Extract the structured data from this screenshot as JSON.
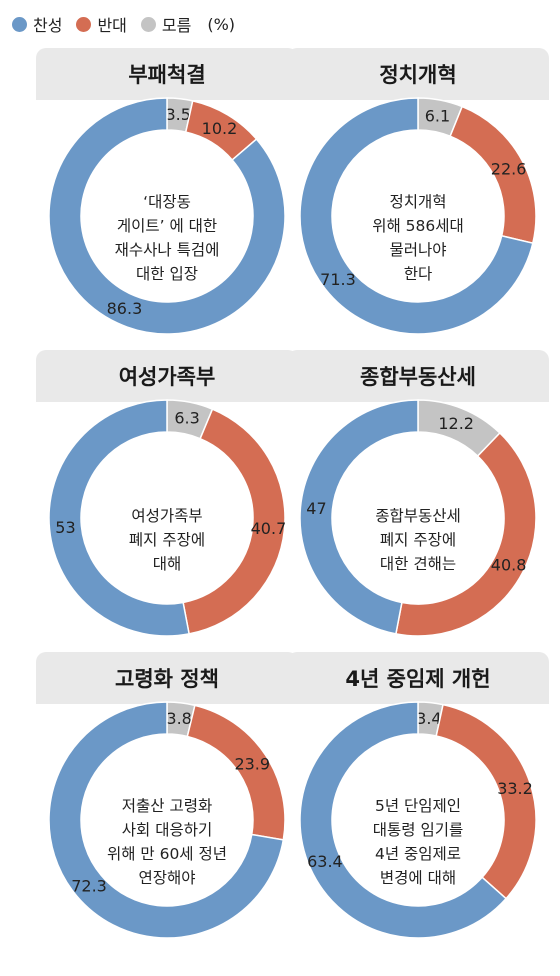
{
  "legend": {
    "items": [
      {
        "label": "찬성",
        "color": "#6b98c7"
      },
      {
        "label": "반대",
        "color": "#d46d53"
      },
      {
        "label": "모름",
        "color": "#c4c4c4"
      }
    ],
    "unit": "(%)"
  },
  "chart_data": [
    {
      "type": "pie",
      "title": "부패척결",
      "question_lines": [
        "‘대장동",
        "게이트’ 에 대한",
        "재수사나 특검에",
        "대한 입장"
      ],
      "slices": [
        {
          "name": "찬성",
          "value": 86.3,
          "label": "86.3"
        },
        {
          "name": "반대",
          "value": 10.2,
          "label": "10.2"
        },
        {
          "name": "모름",
          "value": 3.5,
          "label": "3.5"
        }
      ]
    },
    {
      "type": "pie",
      "title": "정치개혁",
      "question_lines": [
        "정치개혁",
        "위해 586세대",
        "물러나야",
        "한다"
      ],
      "slices": [
        {
          "name": "찬성",
          "value": 71.3,
          "label": "71.3"
        },
        {
          "name": "반대",
          "value": 22.6,
          "label": "22.6"
        },
        {
          "name": "모름",
          "value": 6.1,
          "label": "6.1"
        }
      ]
    },
    {
      "type": "pie",
      "title": "여성가족부",
      "question_lines": [
        "여성가족부",
        "폐지 주장에",
        "대해"
      ],
      "slices": [
        {
          "name": "찬성",
          "value": 53,
          "label": "53"
        },
        {
          "name": "반대",
          "value": 40.7,
          "label": "40.7"
        },
        {
          "name": "모름",
          "value": 6.3,
          "label": "6.3"
        }
      ]
    },
    {
      "type": "pie",
      "title": "종합부동산세",
      "question_lines": [
        "종합부동산세",
        "폐지 주장에",
        "대한 견해는"
      ],
      "slices": [
        {
          "name": "찬성",
          "value": 47,
          "label": "47"
        },
        {
          "name": "반대",
          "value": 40.8,
          "label": "40.8"
        },
        {
          "name": "모름",
          "value": 12.2,
          "label": "12.2"
        }
      ]
    },
    {
      "type": "pie",
      "title": "고령화 정책",
      "question_lines": [
        "저출산 고령화",
        "사회 대응하기",
        "위해 만 60세 정년",
        "연장해야"
      ],
      "slices": [
        {
          "name": "찬성",
          "value": 72.3,
          "label": "72.3"
        },
        {
          "name": "반대",
          "value": 23.9,
          "label": "23.9"
        },
        {
          "name": "모름",
          "value": 3.8,
          "label": "3.8"
        }
      ]
    },
    {
      "type": "pie",
      "title": "4년 중임제 개헌",
      "question_lines": [
        "5년 단임제인",
        "대통령 임기를",
        "4년 중임제로",
        "변경에 대해"
      ],
      "slices": [
        {
          "name": "찬성",
          "value": 63.4,
          "label": "63.4"
        },
        {
          "name": "반대",
          "value": 33.2,
          "label": "33.2"
        },
        {
          "name": "모름",
          "value": 3.4,
          "label": "3.4"
        }
      ]
    }
  ]
}
